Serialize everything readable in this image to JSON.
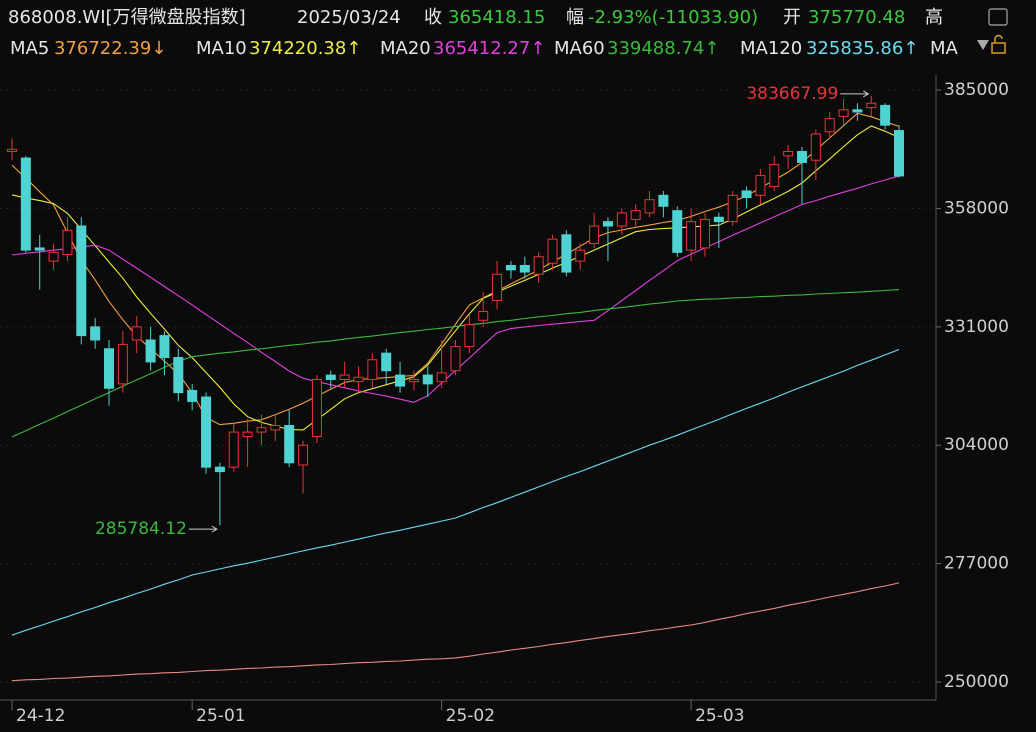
{
  "header": {
    "code": "868008.WI[万得微盘股指数]",
    "date": "2025/03/24",
    "close_label": "收",
    "close": "365418.15",
    "change_label": "幅",
    "change": "-2.93%(-11033.90)",
    "open_label": "开",
    "open": "375770.48",
    "high_label": "高"
  },
  "chart_data": {
    "type": "candlestick",
    "categories": [
      "24-12",
      null,
      null,
      null,
      null,
      null,
      null,
      null,
      null,
      null,
      null,
      null,
      null,
      "25-01",
      null,
      null,
      null,
      null,
      null,
      null,
      null,
      null,
      null,
      null,
      null,
      null,
      null,
      null,
      null,
      null,
      null,
      "25-02",
      null,
      null,
      null,
      null,
      null,
      null,
      null,
      null,
      null,
      null,
      null,
      null,
      null,
      null,
      null,
      null,
      null,
      "25-03",
      null,
      null,
      null,
      null,
      null,
      null,
      null,
      null,
      null,
      null,
      null,
      null,
      null,
      null,
      null
    ],
    "up_color": "#e8343a",
    "down_color": "#4fd2d2",
    "candles": {
      "open": [
        371000,
        369500,
        349000,
        346000,
        347500,
        354000,
        331000,
        326000,
        318000,
        328000,
        328000,
        329000,
        324000,
        316500,
        315000,
        299000,
        299000,
        306000,
        307000,
        307500,
        308500,
        299500,
        306000,
        320000,
        319000,
        318500,
        319000,
        325000,
        320000,
        318500,
        320000,
        318500,
        321000,
        326500,
        332500,
        337000,
        345000,
        345000,
        343000,
        345500,
        352000,
        346000,
        350000,
        355000,
        354000,
        355500,
        357000,
        361000,
        357500,
        348500,
        349000,
        356000,
        355000,
        362000,
        361000,
        363000,
        370000,
        371000,
        369000,
        375500,
        379000,
        380500,
        381000,
        381500,
        375770.48
      ],
      "high": [
        374000,
        370000,
        352000,
        350000,
        356000,
        356000,
        333000,
        328000,
        330000,
        333500,
        331000,
        330000,
        326000,
        318000,
        316000,
        300000,
        309000,
        310000,
        311000,
        311000,
        312000,
        305000,
        320000,
        321000,
        323000,
        322000,
        325000,
        326000,
        323000,
        321000,
        322000,
        328000,
        328000,
        334000,
        339000,
        346000,
        346000,
        347000,
        348000,
        352000,
        353000,
        350000,
        357000,
        356000,
        358000,
        359000,
        362000,
        362000,
        358500,
        358000,
        357000,
        357000,
        362000,
        363000,
        367000,
        370000,
        372500,
        372000,
        376000,
        380000,
        383000,
        382000,
        383667.99,
        382000,
        377000
      ],
      "low": [
        369000,
        348000,
        339500,
        344000,
        346000,
        327000,
        326000,
        313000,
        316000,
        325000,
        321000,
        320000,
        314000,
        312000,
        297500,
        285784.12,
        298000,
        299000,
        304000,
        305000,
        299000,
        293000,
        304500,
        317000,
        317000,
        316000,
        317000,
        318000,
        316000,
        316500,
        315000,
        317000,
        320000,
        325000,
        331000,
        335000,
        342000,
        342000,
        341000,
        344000,
        342500,
        344000,
        349000,
        346000,
        352000,
        354000,
        356000,
        356000,
        347000,
        346000,
        347000,
        349000,
        354000,
        358000,
        359000,
        362000,
        367000,
        359000,
        364500,
        374000,
        377000,
        378000,
        379000,
        376000,
        365000
      ],
      "close": [
        371500,
        348500,
        348500,
        348000,
        353000,
        329000,
        328000,
        317000,
        327000,
        331000,
        323000,
        324000,
        316000,
        314000,
        299000,
        298000,
        307000,
        307000,
        308000,
        308500,
        300000,
        304000,
        319000,
        319000,
        320000,
        319500,
        323500,
        321000,
        317500,
        319000,
        318000,
        320500,
        326500,
        331500,
        334500,
        343000,
        344000,
        343500,
        347000,
        351000,
        343500,
        348500,
        354000,
        354000,
        357000,
        357500,
        360000,
        358500,
        348000,
        355000,
        355500,
        355000,
        361000,
        360500,
        365500,
        368000,
        371000,
        368500,
        375000,
        378500,
        380500,
        380000,
        382000,
        377000,
        365418.15
      ]
    },
    "series": [
      {
        "name": "MA5",
        "legend_label": "376722.39↓",
        "color": "#f0a040",
        "values": [
          367900,
          364900,
          361800,
          358800,
          352500,
          346200,
          341700,
          336800,
          332600,
          328900,
          326000,
          323200,
          320300,
          316000,
          310300,
          308700,
          309000,
          309500,
          309800,
          311000,
          312200,
          313600,
          315200,
          316800,
          318300,
          319000,
          319200,
          319400,
          319700,
          319900,
          322700,
          327100,
          331600,
          336000,
          337600,
          339200,
          340800,
          342400,
          344000,
          345800,
          347600,
          349400,
          351300,
          352500,
          353100,
          353700,
          354200,
          354800,
          355300,
          356200,
          357300,
          358300,
          359500,
          360900,
          362700,
          364500,
          366300,
          368500,
          371300,
          374100,
          376900,
          379700,
          378900,
          377800,
          376722.39
        ]
      },
      {
        "name": "MA10",
        "legend_label": "374220.38↑",
        "color": "#eeee3c",
        "values": [
          361100,
          360400,
          359800,
          359100,
          356900,
          353200,
          349500,
          345800,
          342100,
          337800,
          334100,
          330500,
          326800,
          324000,
          320600,
          317200,
          313400,
          310500,
          309200,
          308400,
          307600,
          307500,
          309800,
          312200,
          314600,
          316000,
          316900,
          317800,
          318700,
          319600,
          322300,
          326200,
          330100,
          334000,
          337500,
          338900,
          340300,
          341600,
          343000,
          344400,
          345700,
          347100,
          348500,
          349900,
          351300,
          352700,
          353200,
          353400,
          353600,
          353800,
          354000,
          354200,
          355600,
          357200,
          358800,
          360300,
          361900,
          363800,
          366600,
          369300,
          372100,
          374800,
          376800,
          375600,
          374220.38
        ]
      },
      {
        "name": "MA20",
        "legend_label": "365412.27↑",
        "color": "#e040e0",
        "values": [
          347400,
          347800,
          348100,
          348500,
          348800,
          349200,
          349600,
          348500,
          346400,
          344400,
          342300,
          340200,
          338100,
          336000,
          333800,
          331700,
          329500,
          327400,
          325200,
          323100,
          320900,
          319300,
          318500,
          317800,
          317100,
          316400,
          315800,
          315200,
          314500,
          313800,
          315300,
          318200,
          321100,
          323900,
          326800,
          329700,
          330600,
          331000,
          331300,
          331600,
          331900,
          332200,
          332500,
          334700,
          337000,
          339300,
          341600,
          343800,
          346100,
          347600,
          349000,
          350400,
          351900,
          353300,
          354700,
          356100,
          357500,
          358900,
          359800,
          360800,
          361700,
          362600,
          363600,
          364500,
          365412.27
        ]
      },
      {
        "name": "MA60",
        "legend_label": "339488.74↑",
        "color": "#3cb83c",
        "values": [
          305900,
          307300,
          308800,
          310200,
          311700,
          313100,
          314600,
          316000,
          317500,
          318900,
          320300,
          321800,
          323200,
          324200,
          324600,
          325000,
          325300,
          325700,
          326000,
          326400,
          326800,
          327100,
          327500,
          327800,
          328200,
          328600,
          328900,
          329300,
          329700,
          330000,
          330400,
          330700,
          331100,
          331500,
          331800,
          332200,
          332500,
          332900,
          333300,
          333600,
          334000,
          334300,
          334700,
          335100,
          335400,
          335800,
          336200,
          336500,
          336900,
          337100,
          337300,
          337400,
          337600,
          337700,
          337900,
          338000,
          338200,
          338300,
          338500,
          338600,
          338800,
          338900,
          339100,
          339300,
          339488.74
        ]
      },
      {
        "name": "MA120",
        "legend_label": "325835.86↑",
        "color": "#6adcef",
        "values": [
          260700,
          261800,
          262800,
          263900,
          264900,
          266000,
          267000,
          268100,
          269100,
          270200,
          271200,
          272300,
          273300,
          274400,
          275100,
          275800,
          276500,
          277100,
          277800,
          278500,
          279200,
          279900,
          280600,
          281200,
          281900,
          282600,
          283300,
          284000,
          284600,
          285300,
          286000,
          286700,
          287400,
          288600,
          289800,
          290900,
          292100,
          293300,
          294500,
          295700,
          296900,
          298000,
          299200,
          300400,
          301600,
          302800,
          304000,
          305100,
          306300,
          307500,
          308700,
          309900,
          311200,
          312400,
          313600,
          314800,
          316100,
          317300,
          318500,
          319700,
          320900,
          322200,
          323400,
          324600,
          325835.86
        ]
      },
      {
        "name": "MA",
        "color": "#e88a80",
        "values": [
          250300,
          250500,
          250600,
          250800,
          250900,
          251100,
          251300,
          251400,
          251600,
          251800,
          251900,
          252100,
          252200,
          252400,
          252600,
          252700,
          252900,
          253100,
          253200,
          253400,
          253500,
          253700,
          253900,
          254000,
          254200,
          254400,
          254500,
          254700,
          254800,
          255000,
          255200,
          255300,
          255500,
          255900,
          256400,
          256800,
          257300,
          257700,
          258100,
          258600,
          259000,
          259500,
          259900,
          260400,
          260800,
          261200,
          261700,
          262100,
          262600,
          263000,
          263600,
          264300,
          264900,
          265600,
          266200,
          266800,
          267500,
          268100,
          268700,
          269400,
          270000,
          270600,
          271300,
          271900,
          272600
        ]
      }
    ],
    "annotations": [
      {
        "text": "383667.99",
        "color": "#e8343a"
      },
      {
        "text": "285784.12",
        "color": "#3cb83c"
      }
    ],
    "ylim": [
      245900,
      387300
    ],
    "yticks": [
      250000,
      277000,
      304000,
      331000,
      358000,
      385000
    ],
    "grid": true
  }
}
